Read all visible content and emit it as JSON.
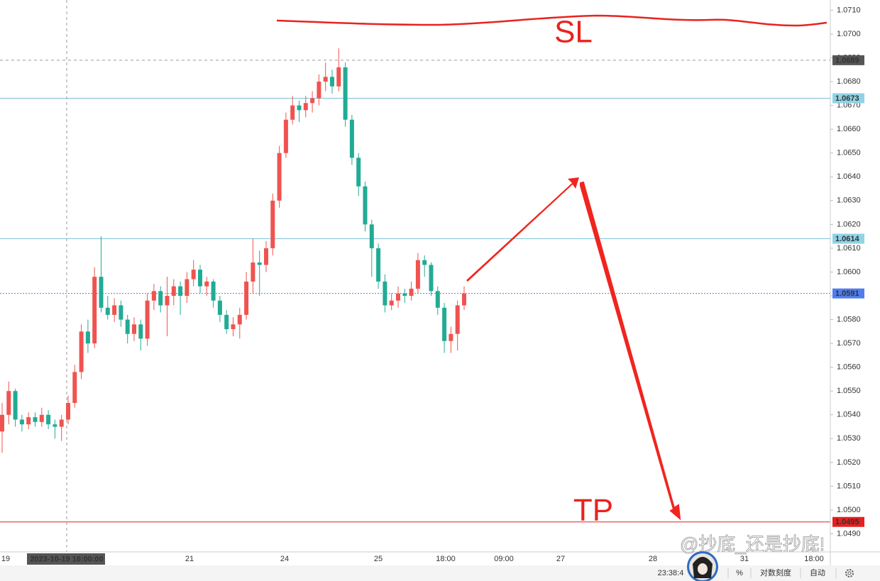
{
  "chart_data": {
    "type": "candlestick",
    "up_color": "#ef5350",
    "down_color": "#22ab94",
    "open": [
      1.0533,
      1.054,
      1.055,
      1.0538,
      1.0536,
      1.0539,
      1.0537,
      1.054,
      1.0536,
      1.0535,
      1.0538,
      1.0545,
      1.0558,
      1.0575,
      1.057,
      1.0598,
      1.0585,
      1.0582,
      1.0586,
      1.058,
      1.0574,
      1.0578,
      1.0572,
      1.0588,
      1.0592,
      1.0586,
      1.059,
      1.0594,
      1.059,
      1.0597,
      1.0601,
      1.0594,
      1.0596,
      1.0588,
      1.0582,
      1.0576,
      1.0578,
      1.0582,
      1.0596,
      1.0604,
      1.0603,
      1.061,
      1.063,
      1.065,
      1.0664,
      1.067,
      1.0668,
      1.0671,
      1.0673,
      1.068,
      1.0682,
      1.0678,
      1.0686,
      1.0664,
      1.0648,
      1.0636,
      1.062,
      1.061,
      1.0596,
      1.0586,
      1.0588,
      1.0591,
      1.059,
      1.0593,
      1.0605,
      1.0603,
      1.0592,
      1.0585,
      1.0571,
      1.0574,
      1.0586
    ],
    "high": [
      1.0545,
      1.0554,
      1.0551,
      1.054,
      1.0541,
      1.0541,
      1.0543,
      1.0542,
      1.0538,
      1.054,
      1.0548,
      1.0561,
      1.0578,
      1.058,
      1.0602,
      1.0615,
      1.059,
      1.0589,
      1.0588,
      1.0582,
      1.0581,
      1.058,
      1.0591,
      1.0595,
      1.0594,
      1.0598,
      1.0597,
      1.0596,
      1.06,
      1.0605,
      1.0603,
      1.0598,
      1.0597,
      1.059,
      1.0584,
      1.0581,
      1.0585,
      1.06,
      1.0614,
      1.0609,
      1.0613,
      1.0633,
      1.0653,
      1.0667,
      1.0674,
      1.0672,
      1.0674,
      1.0676,
      1.0683,
      1.0688,
      1.0685,
      1.0694,
      1.0688,
      1.0666,
      1.065,
      1.0638,
      1.0622,
      1.0612,
      1.0599,
      1.0591,
      1.0594,
      1.0593,
      1.0596,
      1.0608,
      1.0607,
      1.0604,
      1.0594,
      1.0587,
      1.0577,
      1.0588,
      1.0594
    ],
    "low": [
      1.0524,
      1.0536,
      1.0535,
      1.0533,
      1.0534,
      1.0535,
      1.0535,
      1.0534,
      1.053,
      1.0529,
      1.0536,
      1.0543,
      1.0555,
      1.0566,
      1.0568,
      1.0583,
      1.058,
      1.0579,
      1.0577,
      1.057,
      1.0571,
      1.0567,
      1.0569,
      1.0584,
      1.0583,
      1.0573,
      1.0586,
      1.0582,
      1.0587,
      1.0594,
      1.0591,
      1.059,
      1.0585,
      1.0579,
      1.0574,
      1.0573,
      1.0572,
      1.058,
      1.0591,
      1.059,
      1.06,
      1.0607,
      1.0627,
      1.0648,
      1.0662,
      1.0663,
      1.0665,
      1.0667,
      1.067,
      1.0676,
      1.0675,
      1.0676,
      1.0661,
      1.0645,
      1.0632,
      1.0617,
      1.0598,
      1.0593,
      1.0583,
      1.0584,
      1.0585,
      1.0587,
      1.0588,
      1.0591,
      1.0598,
      1.059,
      1.0582,
      1.0566,
      1.0566,
      1.0567,
      1.0584
    ],
    "close": [
      1.054,
      1.055,
      1.0538,
      1.0536,
      1.0539,
      1.0537,
      1.054,
      1.0536,
      1.0535,
      1.0538,
      1.0545,
      1.0558,
      1.0575,
      1.057,
      1.0598,
      1.0585,
      1.0582,
      1.0586,
      1.058,
      1.0574,
      1.0578,
      1.0572,
      1.0588,
      1.0592,
      1.0586,
      1.059,
      1.0594,
      1.059,
      1.0597,
      1.0601,
      1.0594,
      1.0596,
      1.0588,
      1.0582,
      1.0576,
      1.0578,
      1.0582,
      1.0596,
      1.0604,
      1.0603,
      1.061,
      1.063,
      1.065,
      1.0664,
      1.067,
      1.0668,
      1.0671,
      1.0673,
      1.068,
      1.0682,
      1.0678,
      1.0686,
      1.0664,
      1.0648,
      1.0636,
      1.062,
      1.061,
      1.0596,
      1.0586,
      1.0588,
      1.0591,
      1.059,
      1.0593,
      1.0605,
      1.0603,
      1.0592,
      1.0585,
      1.0571,
      1.0574,
      1.0586,
      1.0591
    ],
    "ylim": [
      1.04824,
      1.07143
    ],
    "yticks": [
      {
        "value": 1.049,
        "label": "1.0490"
      },
      {
        "value": 1.05,
        "label": "1.0500"
      },
      {
        "value": 1.051,
        "label": "1.0510"
      },
      {
        "value": 1.052,
        "label": "1.0520"
      },
      {
        "value": 1.053,
        "label": "1.0530"
      },
      {
        "value": 1.054,
        "label": "1.0540"
      },
      {
        "value": 1.055,
        "label": "1.0550"
      },
      {
        "value": 1.056,
        "label": "1.0560"
      },
      {
        "value": 1.057,
        "label": "1.0570"
      },
      {
        "value": 1.058,
        "label": "1.0580"
      },
      {
        "value": 1.059,
        "label": "1.0590"
      },
      {
        "value": 1.06,
        "label": "1.0600"
      },
      {
        "value": 1.061,
        "label": "1.0610"
      },
      {
        "value": 1.062,
        "label": "1.0620"
      },
      {
        "value": 1.063,
        "label": "1.0630"
      },
      {
        "value": 1.064,
        "label": "1.0640"
      },
      {
        "value": 1.065,
        "label": "1.0650"
      },
      {
        "value": 1.066,
        "label": "1.0660"
      },
      {
        "value": 1.067,
        "label": "1.0670"
      },
      {
        "value": 1.068,
        "label": "1.0680"
      },
      {
        "value": 1.069,
        "label": "1.0690"
      },
      {
        "value": 1.07,
        "label": "1.0700"
      },
      {
        "value": 1.071,
        "label": "1.0710"
      }
    ],
    "price_lines": [
      {
        "value": 1.0689,
        "color": "#555555",
        "text_color": "#ffffff",
        "line": "#999999",
        "dash": "4 4"
      },
      {
        "value": 1.0673,
        "color": "#8fd3e6",
        "text_color": "#111111",
        "line": "#7cc3d8",
        "dash": ""
      },
      {
        "value": 1.0614,
        "color": "#8fd3e6",
        "text_color": "#111111",
        "line": "#7cc3d8",
        "dash": ""
      },
      {
        "value": 1.0591,
        "color": "#4f7df0",
        "text_color": "#ffffff",
        "line": "#4f7df0",
        "dash": "2 2"
      },
      {
        "value": 1.0495,
        "color": "#e52020",
        "text_color": "#ffffff",
        "line": "#e52020",
        "dash": ""
      }
    ],
    "x_labels": [
      "19",
      "21",
      "24",
      "25",
      "18:00",
      "09:00",
      "27",
      "28",
      "31",
      "18:00"
    ],
    "crosshair_x_label": "2023-10-19 16:00:00",
    "annotations": [
      "SL",
      "TP"
    ],
    "watermark": "@抄底_还是抄底!"
  },
  "toolbar": {
    "clock": "23:38:4",
    "percent": "%",
    "log_scale": "对数刻度",
    "auto": "自动"
  }
}
